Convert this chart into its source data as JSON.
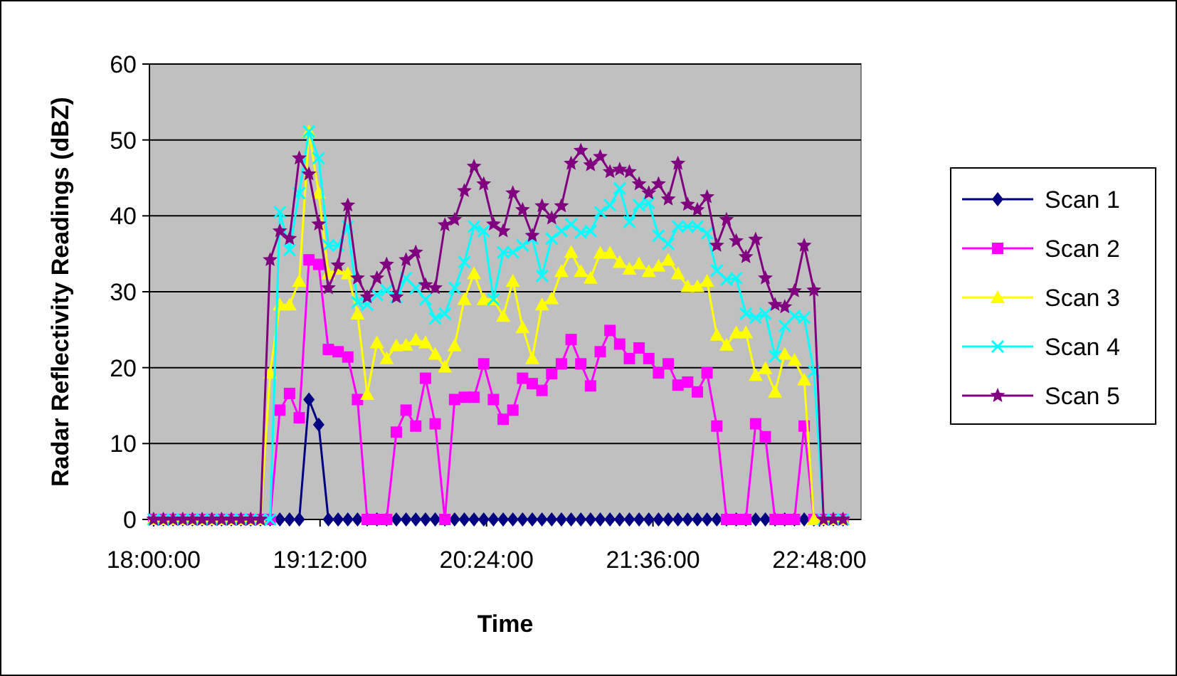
{
  "chart_data": {
    "type": "line",
    "xlabel": "Time",
    "ylabel": "Radar Reflectivity Readings (dBZ)",
    "x": [
      18,
      18.07,
      18.14,
      18.21,
      18.28,
      18.35,
      18.42,
      18.49,
      18.56,
      18.63,
      18.7,
      18.77,
      18.84,
      18.91,
      18.98,
      19.05,
      19.12,
      19.19,
      19.26,
      19.33,
      19.4,
      19.47,
      19.54,
      19.61,
      19.68,
      19.75,
      19.82,
      19.89,
      19.96,
      20.03,
      20.1,
      20.17,
      20.24,
      20.31,
      20.38,
      20.45,
      20.52,
      20.59,
      20.66,
      20.73,
      20.8,
      20.87,
      20.94,
      21.01,
      21.08,
      21.15,
      21.22,
      21.29,
      21.36,
      21.43,
      21.5,
      21.57,
      21.64,
      21.71,
      21.78,
      21.85,
      21.92,
      21.99,
      22.06,
      22.13,
      22.2,
      22.27,
      22.34,
      22.41,
      22.48,
      22.55,
      22.62,
      22.69,
      22.76,
      22.83,
      22.9,
      22.97
    ],
    "xlim": [
      17.97,
      23.1
    ],
    "xticks": [
      {
        "value": 18,
        "label": "18:00:00"
      },
      {
        "value": 19.2,
        "label": "19:12:00"
      },
      {
        "value": 20.4,
        "label": "20:24:00"
      },
      {
        "value": 21.6,
        "label": "21:36:00"
      },
      {
        "value": 22.8,
        "label": "22:48:00"
      }
    ],
    "ylim": [
      0,
      60
    ],
    "yticks": [
      0,
      10,
      20,
      30,
      40,
      50,
      60
    ],
    "grid": "y",
    "legend": "right",
    "line_style": "solid",
    "series": [
      {
        "name": "Scan 1",
        "color": "#000080",
        "marker": "diamond",
        "values": [
          0,
          0,
          0,
          0,
          0,
          0,
          0,
          0,
          0,
          0,
          0,
          0,
          0,
          0,
          0,
          0,
          15.8,
          12.5,
          0,
          0,
          0,
          0,
          0,
          0,
          0,
          0,
          0,
          0,
          0,
          0,
          0,
          0,
          0,
          0,
          0,
          0,
          0,
          0,
          0,
          0,
          0,
          0,
          0,
          0,
          0,
          0,
          0,
          0,
          0,
          0,
          0,
          0,
          0,
          0,
          0,
          0,
          0,
          0,
          0,
          0,
          0,
          0,
          0,
          0,
          0,
          0,
          0,
          0,
          0,
          0,
          0,
          0
        ]
      },
      {
        "name": "Scan 2",
        "color": "#ff00ff",
        "marker": "square",
        "values": [
          0,
          0,
          0,
          0,
          0,
          0,
          0,
          0,
          0,
          0,
          0,
          0,
          0,
          14.4,
          16.6,
          13.4,
          34.2,
          33.6,
          22.4,
          22.1,
          21.4,
          15.8,
          0,
          0,
          0,
          11.5,
          14.4,
          12.3,
          18.6,
          12.6,
          0,
          15.8,
          16.1,
          16.1,
          20.5,
          15.8,
          13.2,
          14.4,
          18.6,
          17.9,
          17.0,
          19.2,
          20.5,
          23.7,
          20.5,
          17.6,
          22.1,
          24.9,
          23.1,
          21.2,
          22.6,
          21.2,
          19.3,
          20.5,
          17.7,
          18.1,
          16.8,
          19.3,
          12.3,
          0,
          0,
          0,
          12.6,
          10.9,
          0,
          0,
          0,
          12.3,
          0,
          0,
          0,
          0
        ]
      },
      {
        "name": "Scan 3",
        "color": "#ffff00",
        "marker": "triangle",
        "values": [
          0,
          0,
          0,
          0,
          0,
          0,
          0,
          0,
          0,
          0,
          0,
          0,
          19.3,
          28.3,
          28.3,
          31.4,
          51.1,
          43.0,
          32.4,
          33.0,
          32.4,
          27.1,
          16.5,
          23.3,
          21.2,
          22.9,
          23.0,
          23.7,
          23.3,
          21.8,
          20.1,
          22.9,
          29.0,
          32.4,
          29.0,
          29.0,
          26.8,
          31.4,
          25.3,
          21.2,
          28.3,
          29.1,
          32.7,
          35.2,
          32.7,
          31.8,
          35.1,
          35.1,
          33.9,
          33.0,
          33.7,
          32.7,
          33.4,
          34.2,
          32.4,
          30.7,
          30.7,
          31.4,
          24.3,
          23.0,
          24.6,
          24.6,
          19.0,
          19.9,
          16.8,
          21.8,
          21.0,
          18.4,
          0,
          0,
          0,
          0
        ]
      },
      {
        "name": "Scan 4",
        "color": "#00ffff",
        "marker": "cross",
        "values": [
          0,
          0,
          0,
          0,
          0,
          0,
          0,
          0,
          0,
          0,
          0,
          0,
          0,
          40.5,
          35.5,
          43.0,
          51.1,
          47.6,
          36.1,
          36.1,
          38.6,
          28.6,
          28.3,
          29.6,
          30.2,
          29.3,
          31.8,
          30.5,
          29.0,
          26.5,
          27.1,
          30.5,
          33.9,
          38.6,
          38.0,
          29.0,
          35.2,
          35.2,
          36.1,
          37.0,
          32.1,
          37.0,
          38.0,
          38.9,
          37.8,
          38.0,
          40.5,
          41.4,
          43.6,
          39.2,
          41.4,
          41.7,
          37.4,
          36.3,
          38.6,
          38.6,
          38.6,
          37.7,
          32.8,
          31.6,
          31.8,
          27.1,
          26.6,
          27.1,
          21.5,
          25.5,
          26.8,
          26.6,
          19.5,
          0,
          0,
          0
        ]
      },
      {
        "name": "Scan 5",
        "color": "#800080",
        "marker": "star",
        "values": [
          0,
          0,
          0,
          0,
          0,
          0,
          0,
          0,
          0,
          0,
          0,
          0,
          34.2,
          38.0,
          37.0,
          47.6,
          45.5,
          38.9,
          30.5,
          33.5,
          41.4,
          31.8,
          29.3,
          31.8,
          33.6,
          29.3,
          34.2,
          35.2,
          30.9,
          30.5,
          38.8,
          39.5,
          43.3,
          46.5,
          44.2,
          38.9,
          38.0,
          43.0,
          40.8,
          37.4,
          41.3,
          39.7,
          41.3,
          46.9,
          48.6,
          46.7,
          47.8,
          45.8,
          46.1,
          45.8,
          44.2,
          43.0,
          44.2,
          42.2,
          46.9,
          41.5,
          40.8,
          42.5,
          36.1,
          39.5,
          36.7,
          34.6,
          36.9,
          31.8,
          28.3,
          28.0,
          30.1,
          36.1,
          30.2,
          0,
          0,
          0
        ]
      }
    ]
  }
}
